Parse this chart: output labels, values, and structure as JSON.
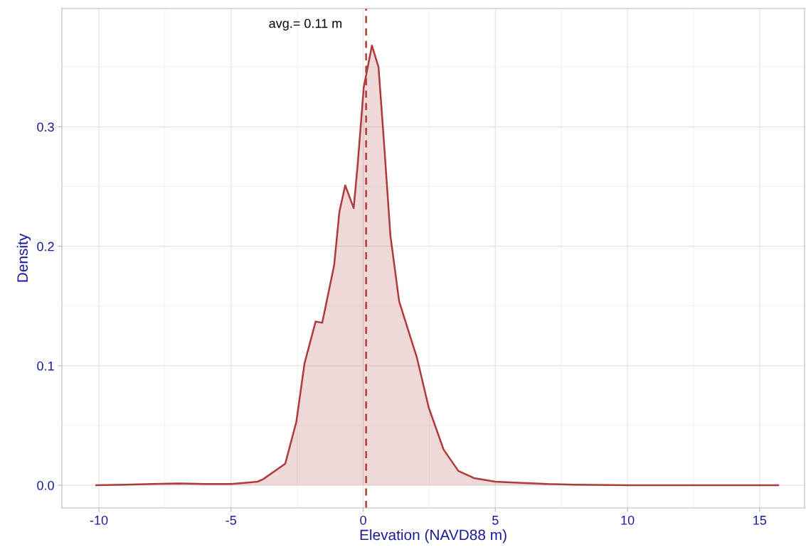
{
  "chart_data": {
    "type": "area",
    "xlabel": "Elevation (NAVD88 m)",
    "ylabel": "Density",
    "xlim": [
      -11.4,
      16.7
    ],
    "ylim": [
      -0.019,
      0.399
    ],
    "xticks": [
      {
        "value": -10,
        "label": "-10"
      },
      {
        "value": -5,
        "label": "-5"
      },
      0,
      5,
      10,
      15
    ],
    "yticks": [
      {
        "value": 0,
        "label": "0.0"
      },
      0.1,
      0.2,
      0.3
    ],
    "grid": true,
    "legend": false,
    "series": [
      {
        "color": "#b03a3a",
        "x": [
          -10.1,
          -9,
          -8,
          -7,
          -6,
          -5,
          -4.5,
          -4,
          -3.79,
          -2.95,
          -2.53,
          -2.22,
          -1.8,
          -1.55,
          -1.1,
          -0.9,
          -0.68,
          -0.36,
          -0.21,
          0.02,
          0.33,
          0.58,
          0.8,
          1.03,
          1.36,
          1.7,
          2.03,
          2.48,
          3.04,
          3.6,
          4.19,
          5,
          6,
          7,
          8,
          10,
          12,
          15.7
        ],
        "values": [
          0,
          0.0005,
          0.001,
          0.0015,
          0.001,
          0.001,
          0.002,
          0.003,
          0.005,
          0.018,
          0.053,
          0.102,
          0.137,
          0.136,
          0.184,
          0.229,
          0.251,
          0.232,
          0.268,
          0.333,
          0.368,
          0.35,
          0.283,
          0.209,
          0.154,
          0.13,
          0.107,
          0.065,
          0.03,
          0.012,
          0.006,
          0.003,
          0.002,
          0.001,
          0.0005,
          0,
          0,
          0
        ]
      }
    ],
    "ref_lines": [
      {
        "axis": "x",
        "value": 0.11,
        "label": "avg.= 0.11 m",
        "color": "#b03a3a",
        "line_style": "dashed"
      }
    ]
  }
}
